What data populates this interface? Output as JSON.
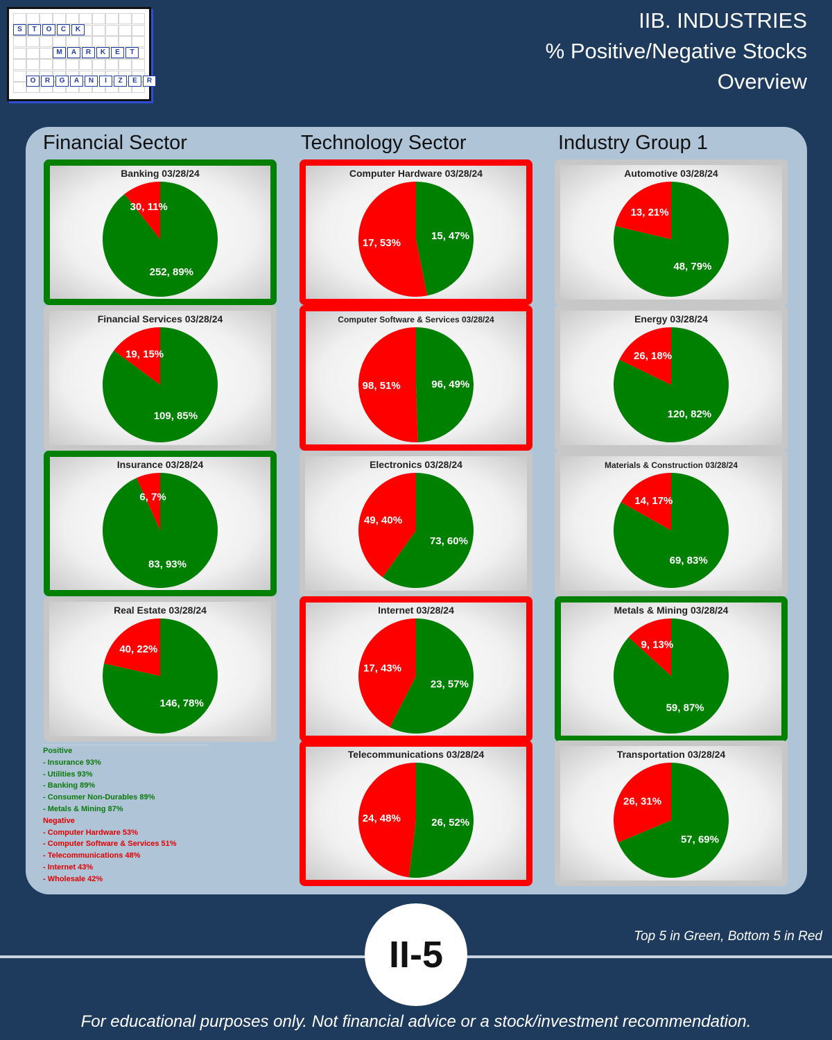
{
  "header": {
    "title_line1": "IIB. INDUSTRIES",
    "title_line2": "% Positive/Negative Stocks",
    "title_line3": "Overview"
  },
  "logo": {
    "word1": [
      "S",
      "T",
      "O",
      "C",
      "K"
    ],
    "word2": [
      "M",
      "A",
      "R",
      "K",
      "E",
      "T"
    ],
    "word3": [
      "O",
      "R",
      "G",
      "A",
      "N",
      "I",
      "Z",
      "E",
      "R"
    ]
  },
  "columns": [
    "Financial Sector",
    "Technology Sector",
    "Industry Group 1"
  ],
  "colors": {
    "positive": "#008000",
    "negative": "#ff0000",
    "neutral_frame": "#c7c7c7"
  },
  "chart_data": [
    {
      "type": "pie",
      "title": "Banking 03/28/24",
      "negative": 30,
      "neg_pct": "11%",
      "positive": 252,
      "pos_pct": "89%",
      "highlight": "top"
    },
    {
      "type": "pie",
      "title": "Financial Services 03/28/24",
      "negative": 19,
      "neg_pct": "15%",
      "positive": 109,
      "pos_pct": "85%",
      "highlight": "none"
    },
    {
      "type": "pie",
      "title": "Insurance 03/28/24",
      "negative": 6,
      "neg_pct": "7%",
      "positive": 83,
      "pos_pct": "93%",
      "highlight": "top"
    },
    {
      "type": "pie",
      "title": "Real Estate 03/28/24",
      "negative": 40,
      "neg_pct": "22%",
      "positive": 146,
      "pos_pct": "78%",
      "highlight": "none"
    },
    {
      "type": "pie",
      "title": "Computer Hardware 03/28/24",
      "negative": 17,
      "neg_pct": "53%",
      "positive": 15,
      "pos_pct": "47%",
      "highlight": "bottom"
    },
    {
      "type": "pie",
      "title": "Computer Software & Services 03/28/24",
      "negative": 98,
      "neg_pct": "51%",
      "positive": 96,
      "pos_pct": "49%",
      "highlight": "bottom"
    },
    {
      "type": "pie",
      "title": "Electronics 03/28/24",
      "negative": 49,
      "neg_pct": "40%",
      "positive": 73,
      "pos_pct": "60%",
      "highlight": "none"
    },
    {
      "type": "pie",
      "title": "Internet 03/28/24",
      "negative": 17,
      "neg_pct": "43%",
      "positive": 23,
      "pos_pct": "57%",
      "highlight": "bottom"
    },
    {
      "type": "pie",
      "title": "Telecommunications 03/28/24",
      "negative": 24,
      "neg_pct": "48%",
      "positive": 26,
      "pos_pct": "52%",
      "highlight": "bottom"
    },
    {
      "type": "pie",
      "title": "Automotive 03/28/24",
      "negative": 13,
      "neg_pct": "21%",
      "positive": 48,
      "pos_pct": "79%",
      "highlight": "none"
    },
    {
      "type": "pie",
      "title": "Energy 03/28/24",
      "negative": 26,
      "neg_pct": "18%",
      "positive": 120,
      "pos_pct": "82%",
      "highlight": "none"
    },
    {
      "type": "pie",
      "title": "Materials & Construction 03/28/24",
      "negative": 14,
      "neg_pct": "17%",
      "positive": 69,
      "pos_pct": "83%",
      "highlight": "none"
    },
    {
      "type": "pie",
      "title": "Metals & Mining 03/28/24",
      "negative": 9,
      "neg_pct": "13%",
      "positive": 59,
      "pos_pct": "87%",
      "highlight": "top"
    },
    {
      "type": "pie",
      "title": "Transportation 03/28/24",
      "negative": 26,
      "neg_pct": "31%",
      "positive": 57,
      "pos_pct": "69%",
      "highlight": "none"
    }
  ],
  "legend": {
    "positive_label": "Positive",
    "positive_items": [
      "- Insurance 93%",
      "- Utilities 93%",
      "- Banking 89%",
      "- Consumer Non-Durables 89%",
      "- Metals & Mining 87%"
    ],
    "negative_label": "Negative",
    "negative_items": [
      "- Computer Hardware 53%",
      "- Computer Software & Services 51%",
      "- Telecommunications 48%",
      "- Internet 43%",
      "- Wholesale 42%"
    ]
  },
  "badge": "II-5",
  "note": "Top 5 in Green, Bottom 5 in Red",
  "footer": "For educational purposes only. Not financial advice or a stock/investment recommendation."
}
